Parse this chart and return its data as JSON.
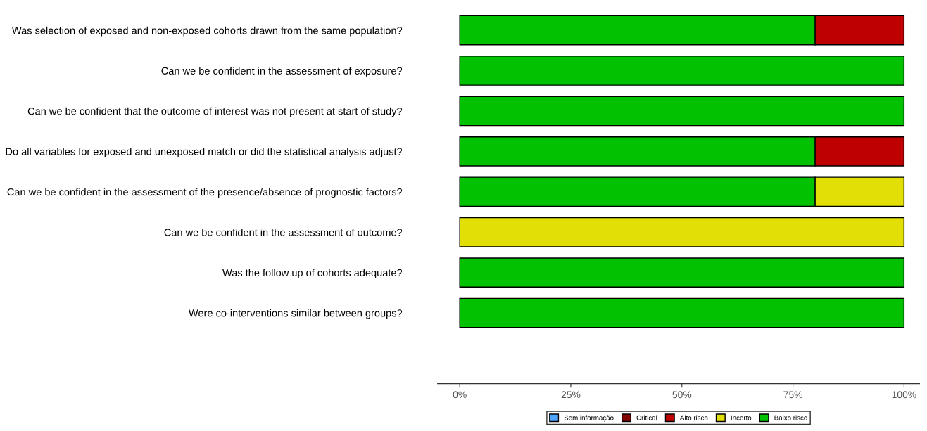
{
  "chart_data": {
    "type": "bar",
    "orientation": "horizontal",
    "stacked": true,
    "categories": [
      "Was selection of exposed and non-exposed cohorts drawn from the same population?",
      "Can we be confident in the assessment of exposure?",
      "Can we be confident that the outcome of interest was not present at start of study?",
      "Do all variables for exposed and unexposed match or did the statistical analysis adjust?",
      "Can we be confident in the assessment of the presence/absence of prognostic factors?",
      "Can we be confident in the assessment of outcome?",
      "Was the follow up of cohorts adequate?",
      "Were co-interventions similar between groups?"
    ],
    "series": [
      {
        "name": "Baixo risco",
        "color": "#02c100",
        "values": [
          80,
          100,
          100,
          80,
          80,
          0,
          100,
          100
        ]
      },
      {
        "name": "Incerto",
        "color": "#e2df07",
        "values": [
          0,
          0,
          0,
          0,
          20,
          100,
          0,
          0
        ]
      },
      {
        "name": "Alto risco",
        "color": "#bf0000",
        "values": [
          20,
          0,
          0,
          20,
          0,
          0,
          0,
          0
        ]
      },
      {
        "name": "Critical",
        "color": "#820000",
        "values": [
          0,
          0,
          0,
          0,
          0,
          0,
          0,
          0
        ]
      },
      {
        "name": "Sem informação",
        "color": "#4ea5ff",
        "values": [
          0,
          0,
          0,
          0,
          0,
          0,
          0,
          0
        ]
      }
    ],
    "xlim": [
      -5,
      103.5
    ],
    "xticks": [
      {
        "value": 0,
        "label": "0%"
      },
      {
        "value": 25,
        "label": "25%"
      },
      {
        "value": 50,
        "label": "50%"
      },
      {
        "value": 75,
        "label": "75%"
      },
      {
        "value": 100,
        "label": "100%"
      }
    ],
    "legend": "bottom"
  }
}
